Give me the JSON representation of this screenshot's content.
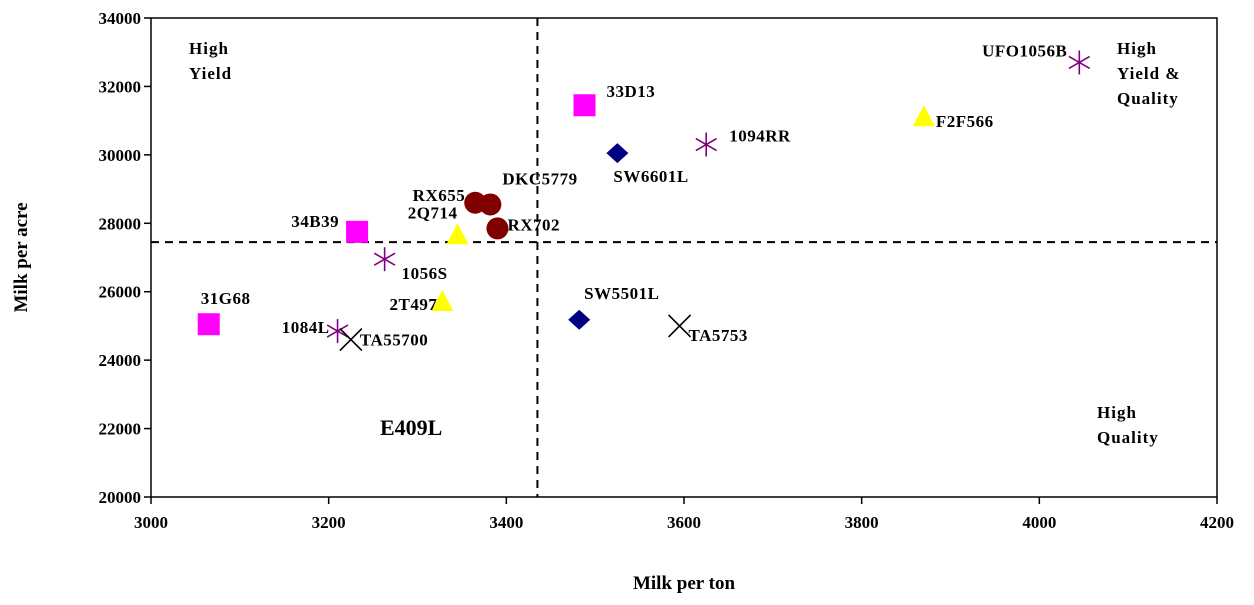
{
  "chart_data": {
    "type": "scatter",
    "xlabel": "Milk per ton",
    "ylabel": "Milk per acre",
    "xlim": [
      3000,
      4200
    ],
    "ylim": [
      20000,
      34000
    ],
    "xticks": [
      3000,
      3200,
      3400,
      3600,
      3800,
      4000,
      4200
    ],
    "yticks": [
      20000,
      22000,
      24000,
      26000,
      28000,
      30000,
      32000,
      34000
    ],
    "xtick_labels": [
      "3000",
      "3200",
      "3400",
      "3600",
      "3800",
      "4000",
      "4200"
    ],
    "ytick_labels": [
      "20000",
      "22000",
      "24000",
      "26000",
      "28000",
      "30000",
      "32000",
      "34000"
    ],
    "reference_lines": {
      "x": 3435,
      "y": 27450,
      "style": "dashed"
    },
    "grid": false,
    "quadrant_labels": [
      {
        "lines": [
          "High",
          "Yield"
        ]
      },
      {
        "lines": [
          "High",
          "Yield &",
          "Quality"
        ]
      },
      {
        "lines": [
          "High",
          "Quality"
        ]
      }
    ],
    "annotation": "E409L",
    "points": [
      {
        "label": "33D13",
        "x": 3488,
        "y": 31450,
        "marker": "square",
        "color": "#ff00ff"
      },
      {
        "label": "34B39",
        "x": 3232,
        "y": 27750,
        "marker": "square",
        "color": "#ff00ff"
      },
      {
        "label": "31G68",
        "x": 3065,
        "y": 25050,
        "marker": "square",
        "color": "#ff00ff"
      },
      {
        "label": "F2F566",
        "x": 3870,
        "y": 31100,
        "marker": "triangle",
        "color": "#ffff00"
      },
      {
        "label": "2Q714",
        "x": 3345,
        "y": 27650,
        "marker": "triangle",
        "color": "#ffff00"
      },
      {
        "label": "2T497",
        "x": 3328,
        "y": 25700,
        "marker": "triangle",
        "color": "#ffff00"
      },
      {
        "label": "SW6601L",
        "x": 3525,
        "y": 30050,
        "marker": "diamond",
        "color": "#000080"
      },
      {
        "label": "SW5501L",
        "x": 3482,
        "y": 25180,
        "marker": "diamond",
        "color": "#000080"
      },
      {
        "label": "RX655",
        "x": 3365,
        "y": 28600,
        "marker": "circle",
        "color": "#800000"
      },
      {
        "label": "DKC5779",
        "x": 3382,
        "y": 28550,
        "marker": "circle",
        "color": "#800000"
      },
      {
        "label": "RX702",
        "x": 3390,
        "y": 27850,
        "marker": "circle",
        "color": "#800000"
      },
      {
        "label": "UFO1056B",
        "x": 4045,
        "y": 32700,
        "marker": "asterisk",
        "color": "#800080"
      },
      {
        "label": "1094RR",
        "x": 3625,
        "y": 30300,
        "marker": "asterisk",
        "color": "#800080"
      },
      {
        "label": "1056S",
        "x": 3263,
        "y": 26950,
        "marker": "asterisk",
        "color": "#800080"
      },
      {
        "label": "1084L",
        "x": 3210,
        "y": 24850,
        "marker": "asterisk",
        "color": "#800080"
      },
      {
        "label": "TA55700",
        "x": 3225,
        "y": 24600,
        "marker": "x",
        "color": "#000000"
      },
      {
        "label": "TA5753",
        "x": 3595,
        "y": 25000,
        "marker": "x",
        "color": "#000000"
      }
    ]
  }
}
